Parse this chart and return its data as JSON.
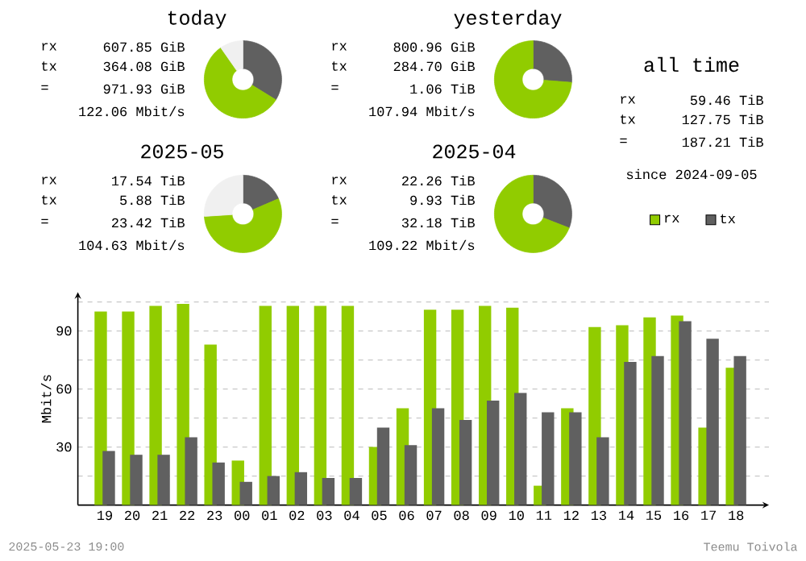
{
  "chart_data": [
    {
      "type": "donut",
      "title": "today",
      "categories": [
        null,
        null,
        null
      ],
      "values": [
        33.8,
        56.5,
        9.7
      ],
      "colors": [
        "#606060",
        "#91cc00",
        "#f0f0f0"
      ],
      "annotations": [
        "rx",
        "607.85 GiB",
        "tx",
        "364.08 GiB",
        "=",
        "971.93 GiB",
        "122.06 Mbit/s"
      ]
    },
    {
      "type": "donut",
      "title": "yesterday",
      "categories": [
        null,
        null
      ],
      "values": [
        26.2,
        73.8
      ],
      "colors": [
        "#606060",
        "#91cc00"
      ],
      "annotations": [
        "rx",
        "800.96 GiB",
        "tx",
        "284.70 GiB",
        "=",
        "1.06 TiB",
        "107.94 Mbit/s"
      ]
    },
    {
      "type": "other",
      "title": "all time",
      "annotations": [
        "rx",
        "59.46 TiB",
        "tx",
        "127.75 TiB",
        "=",
        "187.21 TiB",
        "since 2024-09-05"
      ]
    },
    {
      "type": "donut",
      "title": "2025-05",
      "categories": [
        null,
        null,
        null
      ],
      "values": [
        18.6,
        55.4,
        26.0
      ],
      "colors": [
        "#606060",
        "#91cc00",
        "#f0f0f0"
      ],
      "annotations": [
        "rx",
        "17.54 TiB",
        "tx",
        "5.88 TiB",
        "=",
        "23.42 TiB",
        "104.63 Mbit/s"
      ]
    },
    {
      "type": "donut",
      "title": "2025-04",
      "categories": [
        null,
        null
      ],
      "values": [
        30.9,
        69.1
      ],
      "colors": [
        "#606060",
        "#91cc00"
      ],
      "annotations": [
        "rx",
        "22.26 TiB",
        "tx",
        "9.93 TiB",
        "=",
        "32.18 TiB",
        "109.22 Mbit/s"
      ]
    },
    {
      "type": "bar",
      "ylabel": "Mbit/s",
      "categories": [
        "19",
        "20",
        "21",
        "22",
        "23",
        "00",
        "01",
        "02",
        "03",
        "04",
        "05",
        "06",
        "07",
        "08",
        "09",
        "10",
        "11",
        "12",
        "13",
        "14",
        "15",
        "16",
        "17",
        "18"
      ],
      "series": [
        {
          "name": "rx",
          "color": "#91cc00",
          "values": [
            100,
            100,
            103,
            104,
            83,
            23,
            103,
            103,
            103,
            103,
            30,
            50,
            101,
            101,
            103,
            102,
            10,
            50,
            92,
            93,
            97,
            98,
            40,
            71
          ]
        },
        {
          "name": "tx",
          "color": "#606060",
          "values": [
            28,
            26,
            26,
            35,
            22,
            12,
            15,
            17,
            14,
            14,
            40,
            31,
            50,
            44,
            54,
            58,
            48,
            48,
            35,
            74,
            77,
            95,
            86,
            77
          ]
        }
      ],
      "ylim": [
        0,
        110
      ],
      "yticks": [
        {
          "value": 15,
          "label": null
        },
        30,
        {
          "value": 45,
          "label": null
        },
        60,
        {
          "value": 75,
          "label": null
        },
        90,
        {
          "value": 105,
          "label": null
        }
      ],
      "grid": "y",
      "legend": "top right",
      "annotations": [
        "2025-05-23 19:00",
        "Teemu Toivola"
      ]
    }
  ]
}
